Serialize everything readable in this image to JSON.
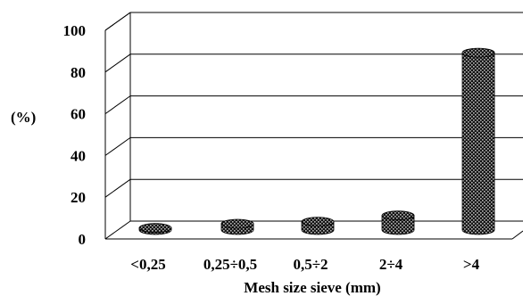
{
  "chart_data": {
    "type": "bar",
    "style": "3d-cylinder",
    "title": "",
    "xlabel": "Mesh size sieve (mm)",
    "ylabel": "(%)",
    "ylim": [
      0,
      100
    ],
    "yticks": [
      "0",
      "20",
      "40",
      "60",
      "80",
      "100"
    ],
    "categories": [
      "<0,25",
      "0,25÷0,5",
      "0,5÷2",
      "2÷4",
      ">4"
    ],
    "values": [
      1,
      3,
      4,
      7,
      85
    ],
    "grid": true,
    "legend": "none",
    "bar_pattern": "dark checkered",
    "colors": {
      "bar_fill": "#1a1a1a",
      "bar_dots": "#bdbdbd",
      "grid": "#000000",
      "background": "#ffffff"
    }
  }
}
